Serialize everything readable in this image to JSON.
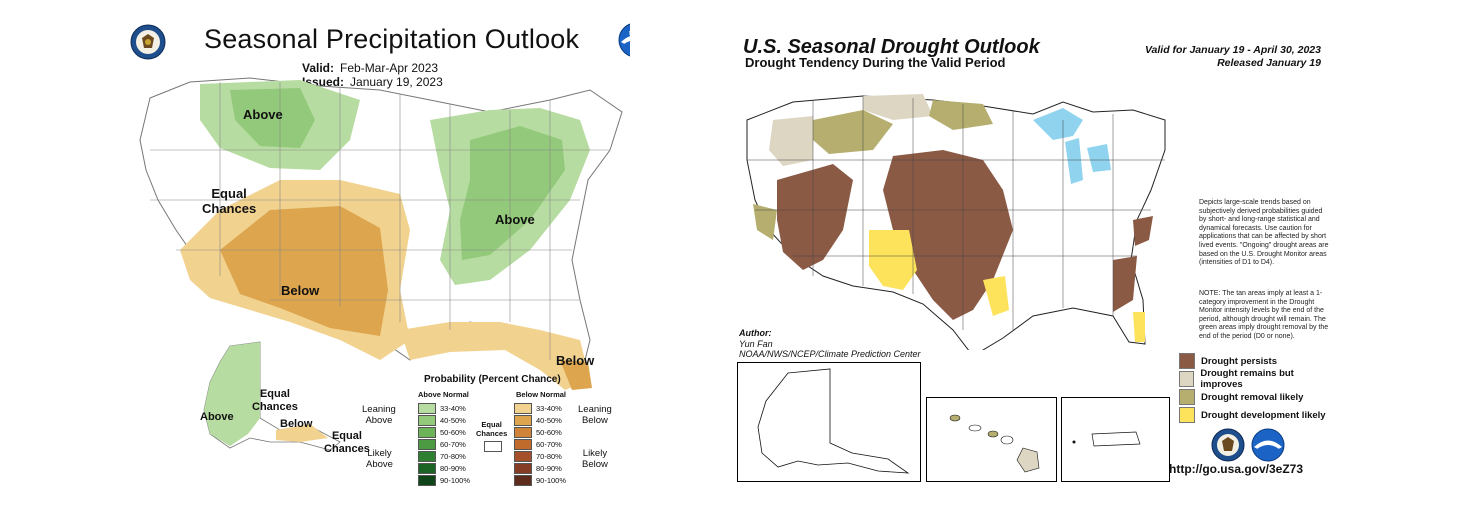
{
  "precip": {
    "title": "Seasonal Precipitation Outlook",
    "valid_label": "Valid:",
    "valid_value": "Feb-Mar-Apr 2023",
    "issued_label": "Issued:",
    "issued_value": "January 19, 2023",
    "map_labels": {
      "above_north": "Above",
      "equal_chances_west_1": "Equal",
      "equal_chances_west_2": "Chances",
      "above_east": "Above",
      "below_sw": "Below",
      "below_fl": "Below",
      "above_ak": "Above",
      "equal_ak_1": "Equal",
      "equal_ak_2": "Chances",
      "below_ak": "Below",
      "equal_ak2_1": "Equal",
      "equal_ak2_2": "Chances"
    },
    "legend": {
      "title": "Probability (Percent Chance)",
      "above_header": "Above Normal",
      "below_header": "Below Normal",
      "leaning_above_1": "Leaning",
      "leaning_above_2": "Above",
      "likely_above_1": "Likely",
      "likely_above_2": "Above",
      "leaning_below_1": "Leaning",
      "leaning_below_2": "Below",
      "likely_below_1": "Likely",
      "likely_below_2": "Below",
      "equal_1": "Equal",
      "equal_2": "Chances",
      "above_bins": [
        {
          "label": "33-40%",
          "color": "#b7dca1"
        },
        {
          "label": "40-50%",
          "color": "#93c97b"
        },
        {
          "label": "50-60%",
          "color": "#6db35a"
        },
        {
          "label": "60-70%",
          "color": "#4c9a42"
        },
        {
          "label": "70-80%",
          "color": "#2f7f33"
        },
        {
          "label": "80-90%",
          "color": "#1c6426"
        },
        {
          "label": "90-100%",
          "color": "#0e4418"
        }
      ],
      "below_bins": [
        {
          "label": "33-40%",
          "color": "#f2d28f"
        },
        {
          "label": "40-50%",
          "color": "#dca54e"
        },
        {
          "label": "50-60%",
          "color": "#d0843a"
        },
        {
          "label": "60-70%",
          "color": "#c06a2c"
        },
        {
          "label": "70-80%",
          "color": "#a4502a"
        },
        {
          "label": "80-90%",
          "color": "#863d25"
        },
        {
          "label": "90-100%",
          "color": "#5e2c1c"
        }
      ]
    },
    "icons": [
      "dept-commerce-seal-icon",
      "noaa-logo-icon"
    ]
  },
  "drought": {
    "title": "U.S. Seasonal Drought Outlook",
    "subtitle": "Drought Tendency During the Valid Period",
    "valid_line": "Valid for January 19 - April 30, 2023",
    "released_line": "Released January 19",
    "author_label": "Author:",
    "author_name": "Yun Fan",
    "author_org": "NOAA/NWS/NCEP/Climate Prediction Center",
    "note_1": "Depicts large-scale trends based on subjectively derived probabilities guided by short- and long-range statistical and dynamical forecasts. Use caution for applications that can be affected by short lived events. \"Ongoing\" drought areas are based on the U.S. Drought Monitor areas (intensities of D1 to D4).",
    "note_2": "NOTE: The tan areas imply at least a 1-category improvement in the Drought Monitor intensity levels by the end of the period, although drought will remain. The green areas imply drought removal by the end of the period (D0 or none).",
    "legend": [
      {
        "label": "Drought persists",
        "color": "#8b5a45"
      },
      {
        "label": "Drought remains but improves",
        "color": "#ddd6c3"
      },
      {
        "label": "Drought removal likely",
        "color": "#b5ae6e"
      },
      {
        "label": "Drought development likely",
        "color": "#fde35c"
      }
    ],
    "url": "http://go.usa.gov/3eZ73",
    "icons": [
      "dept-commerce-seal-icon",
      "noaa-logo-icon"
    ]
  }
}
